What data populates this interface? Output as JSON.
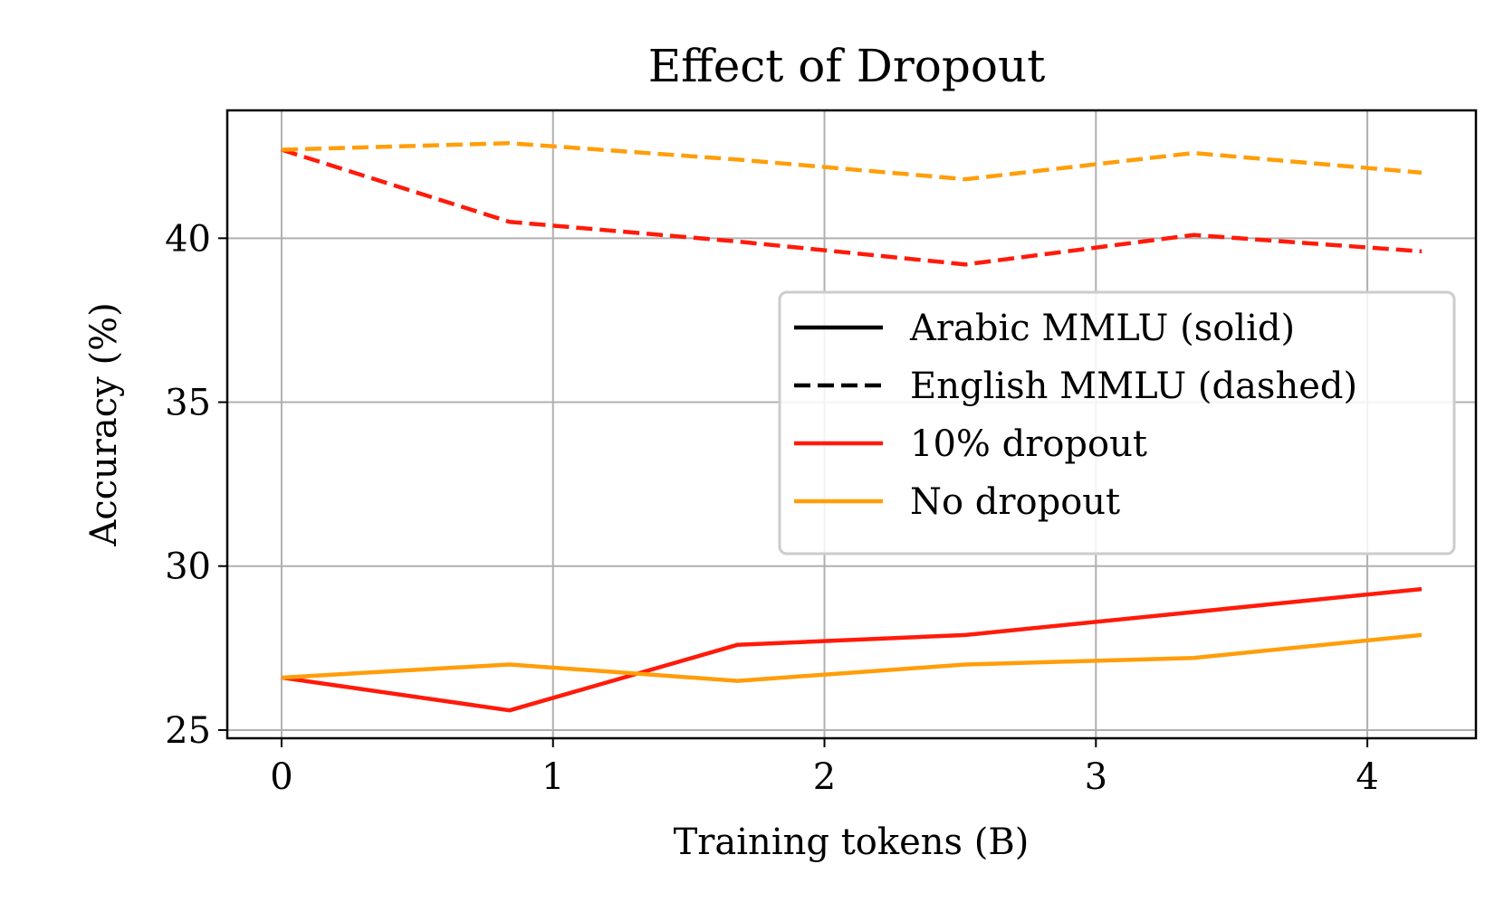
{
  "chart_data": {
    "type": "line",
    "title": "Effect of Dropout",
    "xlabel": "Training tokens (B)",
    "ylabel": "Accuracy (%)",
    "xlim": [
      -0.2,
      4.4
    ],
    "ylim": [
      24.75,
      43.9
    ],
    "xticks": [
      0,
      1,
      2,
      3,
      4
    ],
    "yticks": [
      25,
      30,
      35,
      40
    ],
    "grid": true,
    "legend_position": "center-right",
    "legend": [
      {
        "label": "Arabic MMLU (solid)",
        "color": "#000000",
        "style": "solid"
      },
      {
        "label": "English MMLU (dashed)",
        "color": "#000000",
        "style": "dashed"
      },
      {
        "label": "10% dropout",
        "color": "#ff1a0a",
        "style": "solid"
      },
      {
        "label": "No dropout",
        "color": "#ff9e0a",
        "style": "solid"
      }
    ],
    "x": [
      0,
      0.84,
      1.68,
      2.52,
      3.36,
      4.2
    ],
    "series": [
      {
        "group": "10% dropout",
        "metric": "Arabic MMLU",
        "color": "#ff1a0a",
        "style": "solid",
        "values": [
          26.6,
          25.6,
          27.6,
          27.9,
          28.6,
          29.3
        ]
      },
      {
        "group": "No dropout",
        "metric": "Arabic MMLU",
        "color": "#ff9e0a",
        "style": "solid",
        "values": [
          26.6,
          27.0,
          26.5,
          27.0,
          27.2,
          27.9
        ]
      },
      {
        "group": "10% dropout",
        "metric": "English MMLU",
        "color": "#ff1a0a",
        "style": "dashed",
        "values": [
          42.7,
          40.5,
          39.9,
          39.2,
          40.1,
          39.6
        ]
      },
      {
        "group": "No dropout",
        "metric": "English MMLU",
        "color": "#ff9e0a",
        "style": "dashed",
        "values": [
          42.7,
          42.9,
          42.4,
          41.8,
          42.6,
          42.0
        ]
      }
    ]
  }
}
